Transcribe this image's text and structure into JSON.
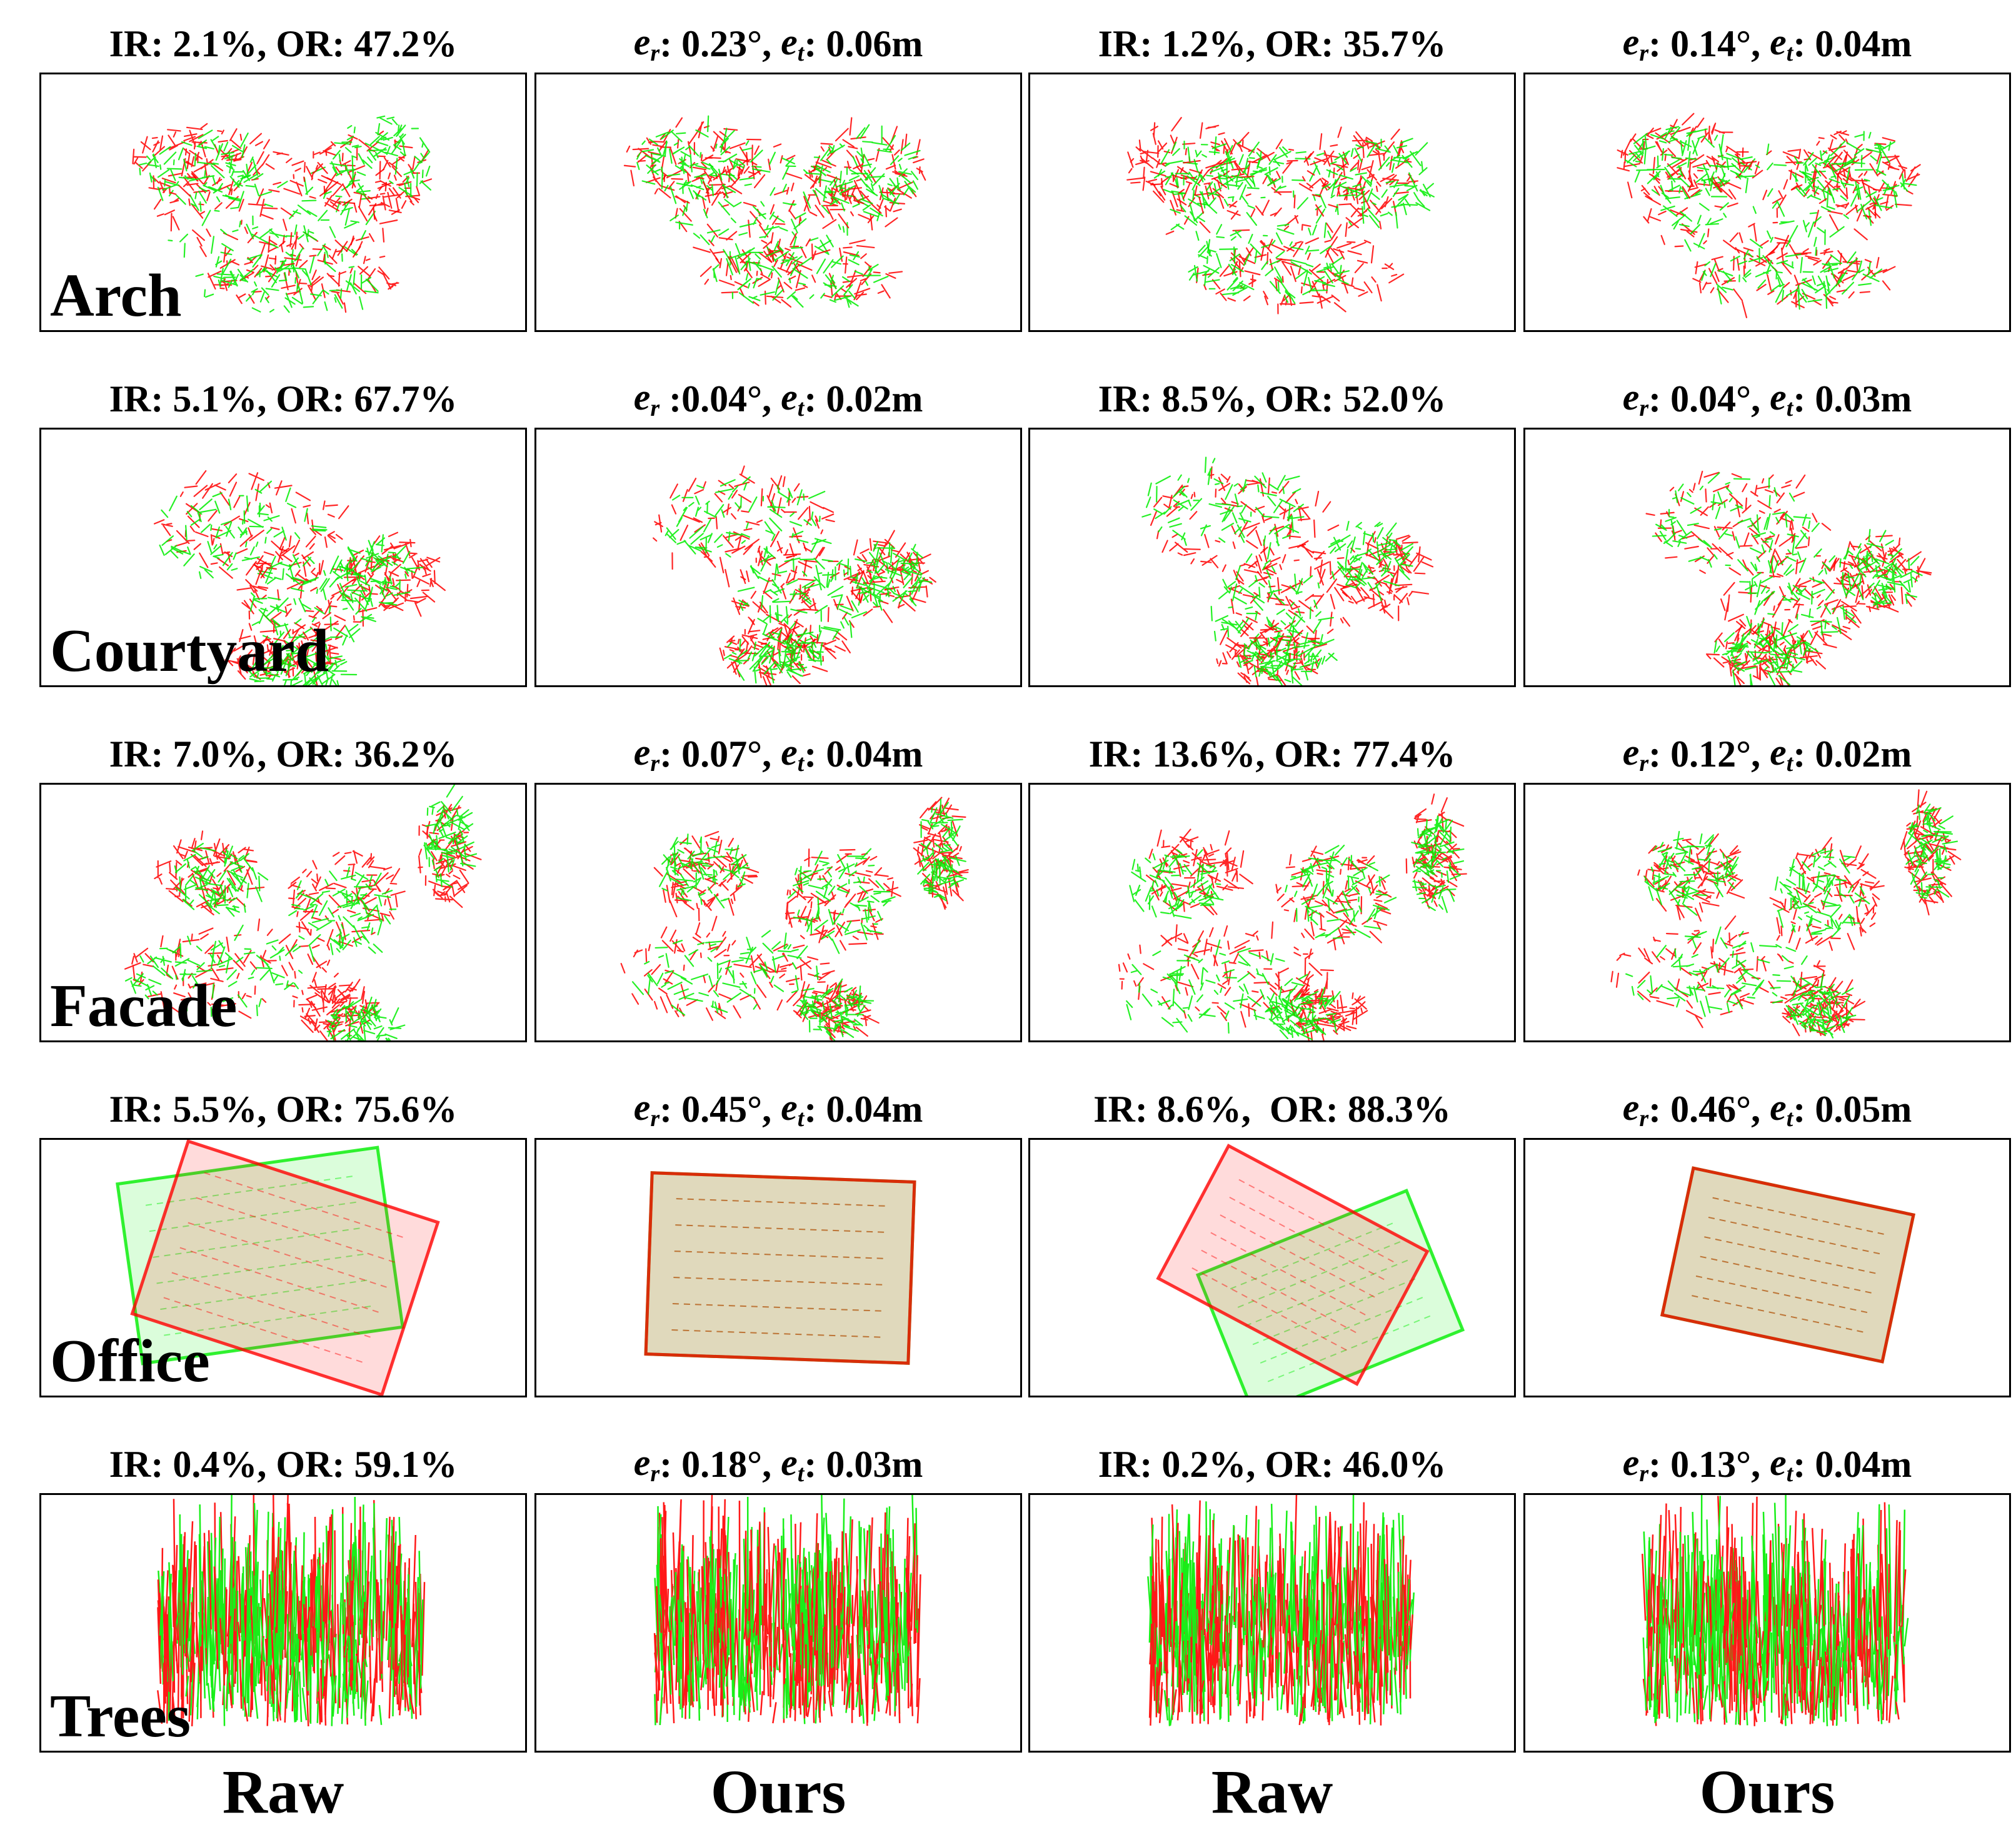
{
  "figure": {
    "column_labels": [
      "Raw",
      "Ours",
      "Raw",
      "Ours"
    ],
    "colors": {
      "source": "#ff0000",
      "target": "#00ee00",
      "border": "#000000"
    },
    "rows": [
      {
        "scene": "Arch",
        "captions": [
          {
            "kind": "rate",
            "ir": "2.1%",
            "or": "47.2%"
          },
          {
            "kind": "err",
            "er": "0.23°",
            "et": "0.06m"
          },
          {
            "kind": "rate",
            "ir": "1.2%",
            "or": "35.7%"
          },
          {
            "kind": "err",
            "er": "0.14°",
            "et": "0.04m"
          }
        ]
      },
      {
        "scene": "Courtyard",
        "captions": [
          {
            "kind": "rate",
            "ir": "5.1%",
            "or": "67.7%"
          },
          {
            "kind": "err",
            "er": "0.04°",
            "et": "0.02m",
            "compact": true
          },
          {
            "kind": "rate",
            "ir": "8.5%",
            "or": "52.0%"
          },
          {
            "kind": "err",
            "er": "0.04°",
            "et": "0.03m"
          }
        ]
      },
      {
        "scene": "Facade",
        "captions": [
          {
            "kind": "rate",
            "ir": "7.0%",
            "or": "36.2%"
          },
          {
            "kind": "err",
            "er": "0.07°",
            "et": "0.04m"
          },
          {
            "kind": "rate",
            "ir": "13.6%",
            "or": "77.4%"
          },
          {
            "kind": "err",
            "er": "0.12°",
            "et": "0.02m"
          }
        ]
      },
      {
        "scene": "Office",
        "captions": [
          {
            "kind": "rate",
            "ir": "5.5%",
            "or": "75.6%"
          },
          {
            "kind": "err",
            "er": "0.45°",
            "et": "0.04m"
          },
          {
            "kind": "rate",
            "ir": "8.6%",
            "or": "88.3%",
            "wide_gap": true
          },
          {
            "kind": "err",
            "er": "0.46°",
            "et": "0.05m"
          }
        ]
      },
      {
        "scene": "Trees",
        "captions": [
          {
            "kind": "rate",
            "ir": "0.4%",
            "or": "59.1%"
          },
          {
            "kind": "err",
            "er": "0.18°",
            "et": "0.03m"
          },
          {
            "kind": "rate",
            "ir": "0.2%",
            "or": "46.0%"
          },
          {
            "kind": "err",
            "er": "0.13°",
            "et": "0.04m"
          }
        ]
      }
    ]
  }
}
